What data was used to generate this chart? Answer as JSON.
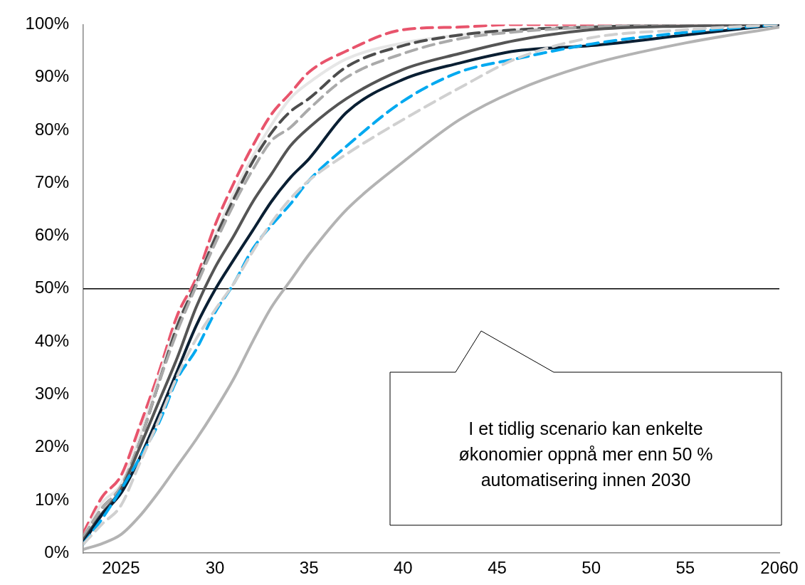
{
  "chart_data": {
    "type": "line",
    "x": [
      2023,
      2024,
      2025,
      2026,
      2027,
      2028,
      2029,
      2030,
      2031,
      2032,
      2033,
      2034,
      2035,
      2037,
      2040,
      2043,
      2046,
      2050,
      2055,
      2060
    ],
    "series": [
      {
        "color": "#b3b3b3",
        "line_style": "solid",
        "values": [
          0.7,
          1.8,
          3.5,
          7,
          11.5,
          16.5,
          21.5,
          27,
          33,
          40,
          46.5,
          51.5,
          56.5,
          65,
          74,
          82,
          87.5,
          92.5,
          96.5,
          99.5
        ]
      },
      {
        "color": "#d0d0d0",
        "line_style": "dashed",
        "values": [
          1.7,
          5.5,
          9,
          17,
          25,
          33.5,
          40.5,
          46,
          51,
          57,
          62.5,
          67,
          70.5,
          75.5,
          82,
          88,
          93.5,
          97.5,
          99,
          100
        ]
      },
      {
        "color": "#00a9f0",
        "line_style": "dashed",
        "values": [
          1.7,
          6.5,
          12,
          18,
          24.5,
          33,
          38.5,
          45.5,
          51,
          57.5,
          62,
          66,
          70.5,
          77,
          85.5,
          91,
          93.5,
          96.3,
          98.5,
          100
        ]
      },
      {
        "color": "#0a1f33",
        "line_style": "solid",
        "values": [
          2,
          7.3,
          11.3,
          18,
          26,
          34.5,
          43,
          49.8,
          55.5,
          61,
          66.5,
          71,
          74.6,
          83.4,
          89.6,
          92.7,
          95,
          96,
          98,
          100
        ]
      },
      {
        "color": "#555555",
        "line_style": "solid",
        "values": [
          2.5,
          7.5,
          12,
          20,
          28.5,
          37,
          46.5,
          54,
          60,
          66.4,
          71.7,
          77,
          80.5,
          86,
          91.5,
          94.5,
          97,
          99,
          99.7,
          100
        ]
      },
      {
        "color": "#aaaaaa",
        "line_style": "dashed",
        "values": [
          3,
          8.5,
          12.5,
          21,
          32,
          42,
          50.5,
          58.5,
          66,
          72.5,
          78,
          80.5,
          84,
          90,
          94.5,
          97.3,
          98.6,
          99.5,
          100,
          100
        ]
      },
      {
        "color": "#4d4d4d",
        "line_style": "dashed",
        "values": [
          3,
          8.5,
          12.5,
          21,
          32,
          43,
          51,
          59.5,
          67,
          74,
          79.5,
          83.5,
          86,
          92,
          96,
          98,
          99,
          99.5,
          100,
          100
        ]
      },
      {
        "color": "#e6e6e6",
        "line_style": "solid",
        "values": [
          3,
          9.5,
          13,
          22,
          33,
          43.5,
          51,
          60,
          68,
          75,
          81,
          86,
          89,
          93.5,
          96.5,
          98,
          99,
          99.5,
          100,
          100
        ]
      },
      {
        "color": "#e8546c",
        "line_style": "dashed",
        "values": [
          3.8,
          10.6,
          14.6,
          24,
          34,
          45,
          52,
          62,
          70,
          77,
          83,
          87,
          91,
          95,
          99,
          99.5,
          100,
          100,
          100,
          100
        ]
      }
    ],
    "xlim": [
      2023,
      2060
    ],
    "xticks": [
      {
        "value": 2025,
        "label": "2025"
      },
      {
        "value": 2030,
        "label": "30"
      },
      {
        "value": 2035,
        "label": "35"
      },
      {
        "value": 2040,
        "label": "40"
      },
      {
        "value": 2045,
        "label": "45"
      },
      {
        "value": 2050,
        "label": "50"
      },
      {
        "value": 2055,
        "label": "55"
      },
      {
        "value": 2060,
        "label": "2060"
      }
    ],
    "ylim": [
      0,
      100
    ],
    "yticks": [
      {
        "value": 0,
        "label": "0%"
      },
      {
        "value": 10,
        "label": "10%"
      },
      {
        "value": 20,
        "label": "20%"
      },
      {
        "value": 30,
        "label": "30%"
      },
      {
        "value": 40,
        "label": "40%"
      },
      {
        "value": 50,
        "label": "50%"
      },
      {
        "value": 60,
        "label": "60%"
      },
      {
        "value": 70,
        "label": "70%"
      },
      {
        "value": 80,
        "label": "80%"
      },
      {
        "value": 90,
        "label": "90%"
      },
      {
        "value": 100,
        "label": "100%"
      }
    ],
    "ref_lines": [
      {
        "axis": "y",
        "value": 50,
        "color": "#000000"
      }
    ],
    "annotations": [
      "I et tidlig scenario kan enkelte økonomier oppnå mer enn 50 % automatisering innen 2030"
    ],
    "grid": false,
    "legend": false,
    "marker": "none"
  }
}
